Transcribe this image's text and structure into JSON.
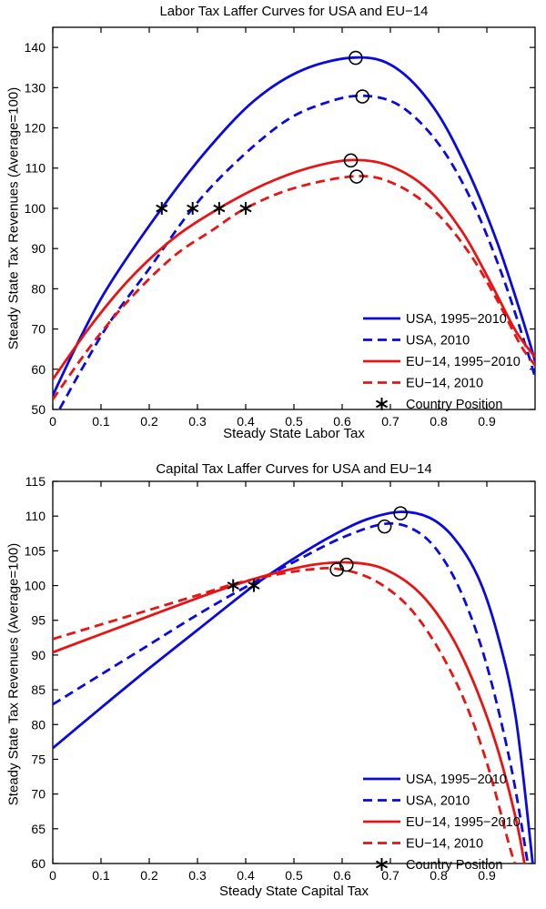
{
  "figure": {
    "background": "#ffffff",
    "text_color": "#000000"
  },
  "colors": {
    "usa": "#0a0ae0",
    "eu": "#e81414",
    "marker": "#000000"
  },
  "chart_data": [
    {
      "type": "line",
      "title": "Labor Tax Laffer Curves for USA and EU−14",
      "xlabel": "Steady State Labor Tax",
      "ylabel": "Steady State Tax Revenues (Average=100)",
      "xlim": [
        0,
        1.0
      ],
      "ylim": [
        50,
        145
      ],
      "xticks": [
        0,
        0.1,
        0.2,
        0.3,
        0.4,
        0.5,
        0.6,
        0.7,
        0.8,
        0.9
      ],
      "yticks": [
        50,
        60,
        70,
        80,
        90,
        100,
        110,
        120,
        130,
        140
      ],
      "grid": false,
      "legend": {
        "position": "lower right",
        "box": false,
        "entries": [
          {
            "label": "USA, 1995−2010",
            "sample": "solid",
            "color": "#0a0ae0"
          },
          {
            "label": "USA, 2010",
            "sample": "dashed",
            "color": "#0a0ae0"
          },
          {
            "label": "EU−14, 1995−2010",
            "sample": "solid",
            "color": "#e81414"
          },
          {
            "label": "EU−14, 2010",
            "sample": "dashed",
            "color": "#e81414"
          },
          {
            "label": "Country Position",
            "sample": "asterisk",
            "color": "#000000"
          }
        ]
      },
      "series": [
        {
          "name": "USA, 1995-2010",
          "color": "#0a0ae0",
          "style": "solid",
          "points": [
            [
              0,
              53.5
            ],
            [
              0.06,
              68.5
            ],
            [
              0.12,
              81.5
            ],
            [
              0.226,
              100
            ],
            [
              0.32,
              114.5
            ],
            [
              0.42,
              127
            ],
            [
              0.52,
              134.5
            ],
            [
              0.63,
              137.5
            ],
            [
              0.71,
              135
            ],
            [
              0.79,
              125
            ],
            [
              0.86,
              109.5
            ],
            [
              0.92,
              92
            ],
            [
              0.97,
              74
            ],
            [
              1.0,
              62
            ]
          ]
        },
        {
          "name": "USA, 2010",
          "color": "#0a0ae0",
          "style": "dashed",
          "points": [
            [
              0,
              47
            ],
            [
              0.06,
              60
            ],
            [
              0.12,
              72
            ],
            [
              0.2,
              85
            ],
            [
              0.29,
              100
            ],
            [
              0.38,
              111.5
            ],
            [
              0.48,
              121.5
            ],
            [
              0.56,
              126
            ],
            [
              0.64,
              128
            ],
            [
              0.72,
              125.5
            ],
            [
              0.8,
              116
            ],
            [
              0.87,
              101.5
            ],
            [
              0.93,
              84
            ],
            [
              0.98,
              66
            ],
            [
              1.0,
              58
            ]
          ]
        },
        {
          "name": "EU-14, 1995-2010",
          "color": "#e81414",
          "style": "solid",
          "points": [
            [
              0,
              57.5
            ],
            [
              0.08,
              71
            ],
            [
              0.16,
              82.5
            ],
            [
              0.25,
              92.5
            ],
            [
              0.345,
              100
            ],
            [
              0.44,
              106
            ],
            [
              0.53,
              110
            ],
            [
              0.62,
              112
            ],
            [
              0.7,
              110.5
            ],
            [
              0.78,
              104.5
            ],
            [
              0.85,
              94
            ],
            [
              0.91,
              81
            ],
            [
              0.96,
              69.5
            ],
            [
              1.0,
              63
            ]
          ]
        },
        {
          "name": "EU-14, 2010",
          "color": "#e81414",
          "style": "dashed",
          "points": [
            [
              0,
              52.5
            ],
            [
              0.08,
              66
            ],
            [
              0.16,
              77.5
            ],
            [
              0.25,
              88
            ],
            [
              0.33,
              94.5
            ],
            [
              0.4,
              100
            ],
            [
              0.5,
              105
            ],
            [
              0.63,
              108
            ],
            [
              0.71,
              106
            ],
            [
              0.79,
              99.5
            ],
            [
              0.86,
              89.5
            ],
            [
              0.92,
              77.5
            ],
            [
              0.97,
              66
            ],
            [
              1.0,
              61
            ]
          ]
        }
      ],
      "markers": {
        "peaks": {
          "shape": "circle",
          "color": "#000000",
          "points": [
            [
              0.628,
              137.4
            ],
            [
              0.642,
              127.8
            ],
            [
              0.618,
              111.9
            ],
            [
              0.63,
              107.9
            ]
          ]
        },
        "country_positions": {
          "shape": "asterisk",
          "color": "#000000",
          "points": [
            [
              0.226,
              100
            ],
            [
              0.29,
              100
            ],
            [
              0.345,
              100
            ],
            [
              0.4,
              100
            ]
          ]
        }
      }
    },
    {
      "type": "line",
      "title": "Capital Tax Laffer Curves for USA and EU−14",
      "xlabel": "Steady State Capital Tax",
      "ylabel": "Steady State Tax Revenues (Average=100)",
      "xlim": [
        0,
        1.0
      ],
      "ylim": [
        60,
        115
      ],
      "xticks": [
        0,
        0.1,
        0.2,
        0.3,
        0.4,
        0.5,
        0.6,
        0.7,
        0.8,
        0.9
      ],
      "yticks": [
        60,
        65,
        70,
        75,
        80,
        85,
        90,
        95,
        100,
        105,
        110,
        115
      ],
      "grid": false,
      "legend": {
        "position": "lower right",
        "box": false,
        "entries": [
          {
            "label": "USA, 1995−2010",
            "sample": "solid",
            "color": "#0a0ae0"
          },
          {
            "label": "USA, 2010",
            "sample": "dashed",
            "color": "#0a0ae0"
          },
          {
            "label": "EU−14, 1995−2010",
            "sample": "solid",
            "color": "#e81414"
          },
          {
            "label": "EU−14, 2010",
            "sample": "dashed",
            "color": "#e81414"
          },
          {
            "label": "Country Position",
            "sample": "asterisk",
            "color": "#000000"
          }
        ]
      },
      "series": [
        {
          "name": "USA, 1995-2010",
          "color": "#0a0ae0",
          "style": "solid",
          "points": [
            [
              0,
              76.6
            ],
            [
              0.1,
              82.4
            ],
            [
              0.2,
              88.1
            ],
            [
              0.3,
              93.6
            ],
            [
              0.417,
              100
            ],
            [
              0.5,
              103.9
            ],
            [
              0.58,
              107.2
            ],
            [
              0.65,
              109.5
            ],
            [
              0.72,
              110.6
            ],
            [
              0.78,
              109.8
            ],
            [
              0.83,
              107
            ],
            [
              0.88,
              101.5
            ],
            [
              0.92,
              93.5
            ],
            [
              0.96,
              81
            ],
            [
              0.995,
              60
            ]
          ]
        },
        {
          "name": "USA, 2010",
          "color": "#0a0ae0",
          "style": "dashed",
          "points": [
            [
              0,
              82.9
            ],
            [
              0.1,
              87.2
            ],
            [
              0.2,
              91.5
            ],
            [
              0.3,
              95.8
            ],
            [
              0.4,
              99.8
            ],
            [
              0.5,
              103.4
            ],
            [
              0.6,
              106.9
            ],
            [
              0.69,
              108.9
            ],
            [
              0.75,
              108
            ],
            [
              0.8,
              104.8
            ],
            [
              0.85,
              98.5
            ],
            [
              0.9,
              88.5
            ],
            [
              0.95,
              74
            ],
            [
              0.985,
              60
            ]
          ]
        },
        {
          "name": "EU-14, 1995-2010",
          "color": "#e81414",
          "style": "solid",
          "points": [
            [
              0,
              90.4
            ],
            [
              0.1,
              93
            ],
            [
              0.2,
              95.6
            ],
            [
              0.3,
              98.2
            ],
            [
              0.374,
              100
            ],
            [
              0.45,
              101.6
            ],
            [
              0.54,
              103
            ],
            [
              0.62,
              103.3
            ],
            [
              0.69,
              102.3
            ],
            [
              0.76,
              99
            ],
            [
              0.82,
              93.5
            ],
            [
              0.87,
              86.5
            ],
            [
              0.92,
              77
            ],
            [
              0.96,
              66.5
            ],
            [
              0.978,
              60
            ]
          ]
        },
        {
          "name": "EU-14, 2010",
          "color": "#e81414",
          "style": "dashed",
          "points": [
            [
              0,
              92.3
            ],
            [
              0.1,
              94.4
            ],
            [
              0.2,
              96.5
            ],
            [
              0.3,
              98.6
            ],
            [
              0.374,
              100.2
            ],
            [
              0.45,
              101.4
            ],
            [
              0.53,
              102.3
            ],
            [
              0.59,
              102.4
            ],
            [
              0.66,
              101
            ],
            [
              0.73,
              97.5
            ],
            [
              0.79,
              92
            ],
            [
              0.85,
              84
            ],
            [
              0.9,
              74.5
            ],
            [
              0.945,
              63
            ],
            [
              0.958,
              60
            ]
          ]
        }
      ],
      "markers": {
        "peaks": {
          "shape": "circle",
          "color": "#000000",
          "points": [
            [
              0.721,
              110.4
            ],
            [
              0.688,
              108.5
            ],
            [
              0.609,
              103.0
            ],
            [
              0.589,
              102.3
            ]
          ]
        },
        "country_positions": {
          "shape": "asterisk",
          "color": "#000000",
          "points": [
            [
              0.374,
              100
            ],
            [
              0.417,
              100
            ]
          ]
        }
      }
    }
  ]
}
